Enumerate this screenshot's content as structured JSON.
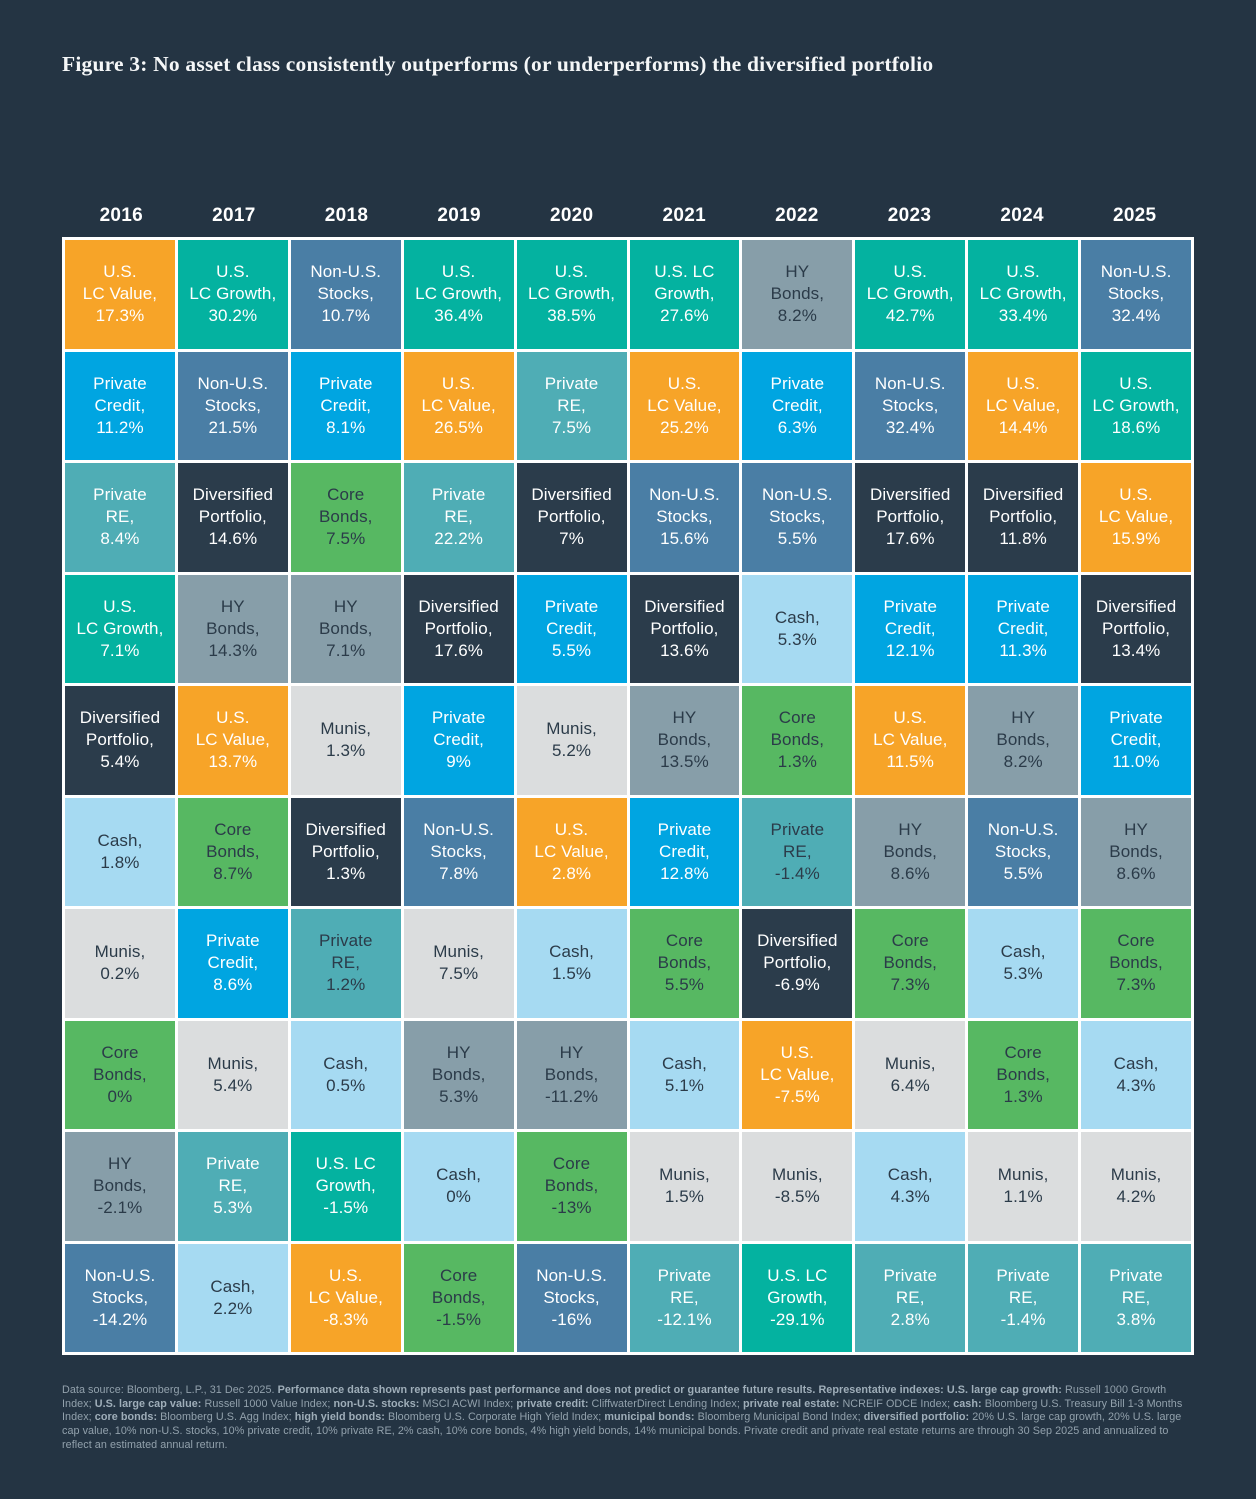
{
  "title": "Figure 3: No asset class consistently outperforms (or underperforms) the diversified portfolio",
  "years": [
    "2016",
    "2017",
    "2018",
    "2019",
    "2020",
    "2021",
    "2022",
    "2023",
    "2024",
    "2025"
  ],
  "colors": {
    "page_bg": "#243443",
    "cell_border": "#FFFFFF",
    "light_text": "#FFFFFF",
    "dark_text": "#2B3B49",
    "assets": {
      "us_lc_growth": {
        "label": "U.S. LC Growth",
        "bg": "#04B2A0",
        "text": "light"
      },
      "us_lc_value": {
        "label": "U.S. LC Value",
        "bg": "#F7A428",
        "text": "light"
      },
      "non_us_stocks": {
        "label": "Non-U.S. Stocks",
        "bg": "#4A7EA5",
        "text": "light"
      },
      "private_credit": {
        "label": "Private Credit",
        "bg": "#00A5E1",
        "text": "light"
      },
      "private_re": {
        "label": "Private RE",
        "bg": "#4FADB5",
        "text": "light"
      },
      "diversified_portfolio": {
        "label": "Diversified Portfolio",
        "bg": "#2B3C4B",
        "text": "light"
      },
      "hy_bonds": {
        "label": "HY Bonds",
        "bg": "#879EA9",
        "text": "dark"
      },
      "cash": {
        "label": "Cash",
        "bg": "#A6DAF2",
        "text": "dark"
      },
      "munis": {
        "label": "Munis",
        "bg": "#DBDDDE",
        "text": "dark"
      },
      "core_bonds": {
        "label": "Core Bonds",
        "bg": "#57B862",
        "text": "dark"
      }
    }
  },
  "chart_data": {
    "type": "table",
    "title": "Figure 3: No asset class consistently outperforms (or underperforms) the diversified portfolio",
    "description": "Asset classes ranked by annual total return (best at top, worst at bottom) for each year 2016-2025. Values are percent returns.",
    "categories": [
      "2016",
      "2017",
      "2018",
      "2019",
      "2020",
      "2021",
      "2022",
      "2023",
      "2024",
      "2025"
    ],
    "columns": [
      {
        "year": "2016",
        "ranking": [
          {
            "asset": "us_lc_value",
            "display": "U.S.\nLC Value,\n17.3%",
            "value": 17.3
          },
          {
            "asset": "private_credit",
            "display": "Private\nCredit,\n11.2%",
            "value": 11.2
          },
          {
            "asset": "private_re",
            "display": "Private\nRE,\n8.4%",
            "value": 8.4
          },
          {
            "asset": "us_lc_growth",
            "display": "U.S.\nLC Growth,\n7.1%",
            "value": 7.1
          },
          {
            "asset": "diversified_portfolio",
            "display": "Diversified\nPortfolio,\n5.4%",
            "value": 5.4
          },
          {
            "asset": "cash",
            "display": "Cash,\n1.8%",
            "value": 1.8
          },
          {
            "asset": "munis",
            "display": "Munis,\n0.2%",
            "value": 0.2
          },
          {
            "asset": "core_bonds",
            "display": "Core\nBonds,\n0%",
            "value": 0
          },
          {
            "asset": "hy_bonds",
            "display": "HY\nBonds,\n-2.1%",
            "value": -2.1
          },
          {
            "asset": "non_us_stocks",
            "display": "Non-U.S.\nStocks,\n-14.2%",
            "value": -14.2
          }
        ]
      },
      {
        "year": "2017",
        "ranking": [
          {
            "asset": "us_lc_growth",
            "display": "U.S.\nLC Growth,\n30.2%",
            "value": 30.2
          },
          {
            "asset": "non_us_stocks",
            "display": "Non-U.S.\nStocks,\n21.5%",
            "value": 21.5
          },
          {
            "asset": "diversified_portfolio",
            "display": "Diversified\nPortfolio,\n14.6%",
            "value": 14.6
          },
          {
            "asset": "hy_bonds",
            "display": "HY\nBonds,\n14.3%",
            "value": 14.3
          },
          {
            "asset": "us_lc_value",
            "display": "U.S.\nLC Value,\n13.7%",
            "value": 13.7
          },
          {
            "asset": "core_bonds",
            "display": "Core\nBonds,\n8.7%",
            "value": 8.7
          },
          {
            "asset": "private_credit",
            "display": "Private\nCredit,\n8.6%",
            "value": 8.6
          },
          {
            "asset": "munis",
            "display": "Munis,\n5.4%",
            "value": 5.4
          },
          {
            "asset": "private_re",
            "display": "Private\nRE,\n5.3%",
            "value": 5.3
          },
          {
            "asset": "cash",
            "display": "Cash,\n2.2%",
            "value": 2.2
          }
        ]
      },
      {
        "year": "2018",
        "ranking": [
          {
            "asset": "non_us_stocks",
            "display": "Non-U.S.\nStocks,\n10.7%",
            "value": 10.7
          },
          {
            "asset": "private_credit",
            "display": "Private\nCredit,\n8.1%",
            "value": 8.1
          },
          {
            "asset": "core_bonds",
            "display": "Core\nBonds,\n7.5%",
            "value": 7.5
          },
          {
            "asset": "hy_bonds",
            "display": "HY\nBonds,\n7.1%",
            "value": 7.1
          },
          {
            "asset": "munis",
            "display": "Munis,\n1.3%",
            "value": 1.3
          },
          {
            "asset": "diversified_portfolio",
            "display": "Diversified\nPortfolio,\n1.3%",
            "value": 1.3
          },
          {
            "asset": "private_re",
            "display": "Private\nRE,\n1.2%",
            "value": 1.2,
            "fg": "dark"
          },
          {
            "asset": "cash",
            "display": "Cash,\n0.5%",
            "value": 0.5
          },
          {
            "asset": "us_lc_growth",
            "display": "U.S. LC\nGrowth,\n-1.5%",
            "value": -1.5
          },
          {
            "asset": "us_lc_value",
            "display": "U.S.\nLC Value,\n-8.3%",
            "value": -8.3
          }
        ]
      },
      {
        "year": "2019",
        "ranking": [
          {
            "asset": "us_lc_growth",
            "display": "U.S.\nLC Growth,\n36.4%",
            "value": 36.4
          },
          {
            "asset": "us_lc_value",
            "display": "U.S.\nLC Value,\n26.5%",
            "value": 26.5
          },
          {
            "asset": "private_re",
            "display": "Private\nRE,\n22.2%",
            "value": 22.2
          },
          {
            "asset": "diversified_portfolio",
            "display": "Diversified\nPortfolio,\n17.6%",
            "value": 17.6
          },
          {
            "asset": "private_credit",
            "display": "Private\nCredit,\n9%",
            "value": 9
          },
          {
            "asset": "non_us_stocks",
            "display": "Non-U.S.\nStocks,\n7.8%",
            "value": 7.8
          },
          {
            "asset": "munis",
            "display": "Munis,\n7.5%",
            "value": 7.5
          },
          {
            "asset": "hy_bonds",
            "display": "HY\nBonds,\n5.3%",
            "value": 5.3
          },
          {
            "asset": "cash",
            "display": "Cash,\n0%",
            "value": 0
          },
          {
            "asset": "core_bonds",
            "display": "Core\nBonds,\n-1.5%",
            "value": -1.5
          }
        ]
      },
      {
        "year": "2020",
        "ranking": [
          {
            "asset": "us_lc_growth",
            "display": "U.S.\nLC Growth,\n38.5%",
            "value": 38.5
          },
          {
            "asset": "private_re",
            "display": "Private\nRE,\n7.5%",
            "value": 7.5
          },
          {
            "asset": "diversified_portfolio",
            "display": "Diversified\nPortfolio,\n7%",
            "value": 7
          },
          {
            "asset": "private_credit",
            "display": "Private\nCredit,\n5.5%",
            "value": 5.5
          },
          {
            "asset": "munis",
            "display": "Munis,\n5.2%",
            "value": 5.2
          },
          {
            "asset": "us_lc_value",
            "display": "U.S.\nLC Value,\n2.8%",
            "value": 2.8
          },
          {
            "asset": "cash",
            "display": "Cash,\n1.5%",
            "value": 1.5
          },
          {
            "asset": "hy_bonds",
            "display": "HY\nBonds,\n-11.2%",
            "value": -11.2
          },
          {
            "asset": "core_bonds",
            "display": "Core\nBonds,\n-13%",
            "value": -13
          },
          {
            "asset": "non_us_stocks",
            "display": "Non-U.S.\nStocks,\n-16%",
            "value": -16
          }
        ]
      },
      {
        "year": "2021",
        "ranking": [
          {
            "asset": "us_lc_growth",
            "display": "U.S. LC\nGrowth,\n27.6%",
            "value": 27.6
          },
          {
            "asset": "us_lc_value",
            "display": "U.S.\nLC Value,\n25.2%",
            "value": 25.2
          },
          {
            "asset": "non_us_stocks",
            "display": "Non-U.S.\nStocks,\n15.6%",
            "value": 15.6
          },
          {
            "asset": "diversified_portfolio",
            "display": "Diversified\nPortfolio,\n13.6%",
            "value": 13.6
          },
          {
            "asset": "hy_bonds",
            "display": "HY\nBonds,\n13.5%",
            "value": 13.5
          },
          {
            "asset": "private_credit",
            "display": "Private\nCredit,\n12.8%",
            "value": 12.8
          },
          {
            "asset": "core_bonds",
            "display": "Core\nBonds,\n5.5%",
            "value": 5.5
          },
          {
            "asset": "cash",
            "display": "Cash,\n5.1%",
            "value": 5.1
          },
          {
            "asset": "munis",
            "display": "Munis,\n1.5%",
            "value": 1.5
          },
          {
            "asset": "private_re",
            "display": "Private\nRE,\n-12.1%",
            "value": -12.1
          }
        ]
      },
      {
        "year": "2022",
        "ranking": [
          {
            "asset": "hy_bonds",
            "display": "HY\nBonds,\n8.2%",
            "value": 8.2
          },
          {
            "asset": "private_credit",
            "display": "Private\nCredit,\n6.3%",
            "value": 6.3
          },
          {
            "asset": "non_us_stocks",
            "display": "Non-U.S.\nStocks,\n5.5%",
            "value": 5.5
          },
          {
            "asset": "cash",
            "display": "Cash,\n5.3%",
            "value": 5.3
          },
          {
            "asset": "core_bonds",
            "display": "Core\nBonds,\n1.3%",
            "value": 1.3
          },
          {
            "asset": "private_re",
            "display": "Private\nRE,\n-1.4%",
            "value": -1.4,
            "fg": "dark"
          },
          {
            "asset": "diversified_portfolio",
            "display": "Diversified\nPortfolio,\n-6.9%",
            "value": -6.9
          },
          {
            "asset": "us_lc_value",
            "display": "U.S.\nLC Value,\n-7.5%",
            "value": -7.5
          },
          {
            "asset": "munis",
            "display": "Munis,\n-8.5%",
            "value": -8.5
          },
          {
            "asset": "us_lc_growth",
            "display": "U.S. LC\nGrowth,\n-29.1%",
            "value": -29.1
          }
        ]
      },
      {
        "year": "2023",
        "ranking": [
          {
            "asset": "us_lc_growth",
            "display": "U.S.\nLC Growth,\n42.7%",
            "value": 42.7
          },
          {
            "asset": "non_us_stocks",
            "display": "Non-U.S.\nStocks,\n32.4%",
            "value": 32.4
          },
          {
            "asset": "diversified_portfolio",
            "display": "Diversified\nPortfolio,\n17.6%",
            "value": 17.6
          },
          {
            "asset": "private_credit",
            "display": "Private\nCredit,\n12.1%",
            "value": 12.1
          },
          {
            "asset": "us_lc_value",
            "display": "U.S.\nLC Value,\n11.5%",
            "value": 11.5
          },
          {
            "asset": "hy_bonds",
            "display": "HY\nBonds,\n8.6%",
            "value": 8.6
          },
          {
            "asset": "core_bonds",
            "display": "Core\nBonds,\n7.3%",
            "value": 7.3
          },
          {
            "asset": "munis",
            "display": "Munis,\n6.4%",
            "value": 6.4
          },
          {
            "asset": "cash",
            "display": "Cash,\n4.3%",
            "value": 4.3
          },
          {
            "asset": "private_re",
            "display": "Private\nRE,\n2.8%",
            "value": 2.8
          }
        ]
      },
      {
        "year": "2024",
        "ranking": [
          {
            "asset": "us_lc_growth",
            "display": "U.S.\nLC Growth,\n33.4%",
            "value": 33.4
          },
          {
            "asset": "us_lc_value",
            "display": "U.S.\nLC Value,\n14.4%",
            "value": 14.4
          },
          {
            "asset": "diversified_portfolio",
            "display": "Diversified\nPortfolio,\n11.8%",
            "value": 11.8
          },
          {
            "asset": "private_credit",
            "display": "Private\nCredit,\n11.3%",
            "value": 11.3
          },
          {
            "asset": "hy_bonds",
            "display": "HY\nBonds,\n8.2%",
            "value": 8.2
          },
          {
            "asset": "non_us_stocks",
            "display": "Non-U.S.\nStocks,\n5.5%",
            "value": 5.5
          },
          {
            "asset": "cash",
            "display": "Cash,\n5.3%",
            "value": 5.3
          },
          {
            "asset": "core_bonds",
            "display": "Core\nBonds,\n1.3%",
            "value": 1.3
          },
          {
            "asset": "munis",
            "display": "Munis,\n1.1%",
            "value": 1.1
          },
          {
            "asset": "private_re",
            "display": "Private\nRE,\n-1.4%",
            "value": -1.4
          }
        ]
      },
      {
        "year": "2025",
        "ranking": [
          {
            "asset": "non_us_stocks",
            "display": "Non-U.S.\nStocks,\n32.4%",
            "value": 32.4
          },
          {
            "asset": "us_lc_growth",
            "display": "U.S.\nLC Growth,\n18.6%",
            "value": 18.6
          },
          {
            "asset": "us_lc_value",
            "display": "U.S.\nLC Value,\n15.9%",
            "value": 15.9
          },
          {
            "asset": "diversified_portfolio",
            "display": "Diversified\nPortfolio,\n13.4%",
            "value": 13.4
          },
          {
            "asset": "private_credit",
            "display": "Private\nCredit,\n11.0%",
            "value": 11.0
          },
          {
            "asset": "hy_bonds",
            "display": "HY\nBonds,\n8.6%",
            "value": 8.6
          },
          {
            "asset": "core_bonds",
            "display": "Core\nBonds,\n7.3%",
            "value": 7.3
          },
          {
            "asset": "cash",
            "display": "Cash,\n4.3%",
            "value": 4.3
          },
          {
            "asset": "munis",
            "display": "Munis,\n4.2%",
            "value": 4.2
          },
          {
            "asset": "private_re",
            "display": "Private\nRE,\n3.8%",
            "value": 3.8
          }
        ]
      }
    ]
  },
  "footnote": {
    "segments": [
      {
        "t": "Data source: Bloomberg, L.P., 31 Dec 2025. ",
        "b": false
      },
      {
        "t": "Performance data shown represents past performance and does not predict or guarantee future results. Representative indexes: U.S. large cap growth:",
        "b": true
      },
      {
        "t": " Russell 1000 Growth Index; ",
        "b": false
      },
      {
        "t": "U.S. large cap value:",
        "b": true
      },
      {
        "t": " Russell 1000 Value Index; ",
        "b": false
      },
      {
        "t": "non-U.S. stocks:",
        "b": true
      },
      {
        "t": " MSCI ACWI Index; ",
        "b": false
      },
      {
        "t": "private credit:",
        "b": true
      },
      {
        "t": " CliffwaterDirect Lending Index; ",
        "b": false
      },
      {
        "t": "private real estate:",
        "b": true
      },
      {
        "t": " NCREIF ODCE Index; ",
        "b": false
      },
      {
        "t": "cash:",
        "b": true
      },
      {
        "t": " Bloomberg U.S. Treasury Bill 1-3 Months Index; ",
        "b": false
      },
      {
        "t": "core bonds:",
        "b": true
      },
      {
        "t": " Bloomberg U.S. Agg Index; ",
        "b": false
      },
      {
        "t": "high yield bonds:",
        "b": true
      },
      {
        "t": " Bloomberg U.S. Corporate High Yield Index; ",
        "b": false
      },
      {
        "t": "municipal bonds:",
        "b": true
      },
      {
        "t": " Bloomberg Municipal Bond Index; ",
        "b": false
      },
      {
        "t": "diversified portfolio:",
        "b": true
      },
      {
        "t": " 20% U.S. large cap growth, 20% U.S. large cap value, 10% non-U.S. stocks, 10% private credit, 10% private RE, 2% cash, 10% core bonds, 4% high yield bonds, 14% municipal bonds. Private credit and private real estate returns are through 30 Sep 2025 and annualized to reflect an estimated annual return.",
        "b": false
      }
    ]
  }
}
